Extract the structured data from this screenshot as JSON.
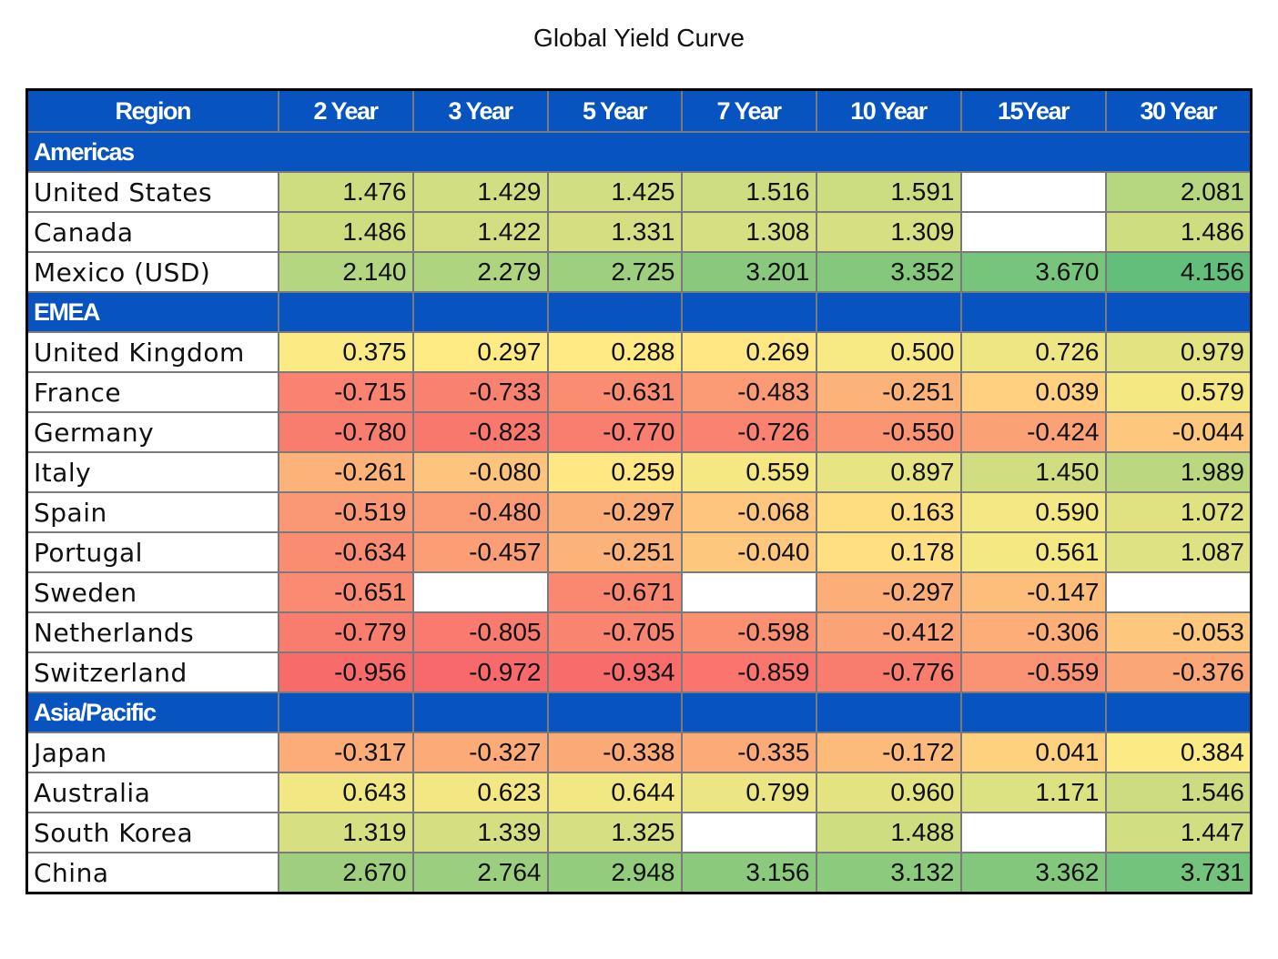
{
  "chart_data": {
    "type": "table",
    "title": "Global Yield Curve",
    "columns": [
      "Region",
      "2 Year",
      "3 Year",
      "5 Year",
      "7 Year",
      "10 Year",
      "15Year",
      "30 Year"
    ],
    "color_scale": {
      "min": -0.972,
      "max": 4.156,
      "low_color": "#f8696b",
      "mid_color": "#ffeb84",
      "high_color": "#63be7b",
      "mid_value": 0.3
    },
    "sections": [
      {
        "name": "Americas",
        "rows": [
          {
            "name": "United States",
            "values": [
              1.476,
              1.429,
              1.425,
              1.516,
              1.591,
              null,
              2.081
            ]
          },
          {
            "name": "Canada",
            "values": [
              1.486,
              1.422,
              1.331,
              1.308,
              1.309,
              null,
              1.486
            ]
          },
          {
            "name": "Mexico (USD)",
            "values": [
              2.14,
              2.279,
              2.725,
              3.201,
              3.352,
              3.67,
              4.156
            ]
          }
        ]
      },
      {
        "name": "EMEA",
        "rows": [
          {
            "name": "United Kingdom",
            "values": [
              0.375,
              0.297,
              0.288,
              0.269,
              0.5,
              0.726,
              0.979
            ]
          },
          {
            "name": "France",
            "values": [
              -0.715,
              -0.733,
              -0.631,
              -0.483,
              -0.251,
              0.039,
              0.579
            ]
          },
          {
            "name": "Germany",
            "values": [
              -0.78,
              -0.823,
              -0.77,
              -0.726,
              -0.55,
              -0.424,
              -0.044
            ]
          },
          {
            "name": "Italy",
            "values": [
              -0.261,
              -0.08,
              0.259,
              0.559,
              0.897,
              1.45,
              1.989
            ]
          },
          {
            "name": "Spain",
            "values": [
              -0.519,
              -0.48,
              -0.297,
              -0.068,
              0.163,
              0.59,
              1.072
            ]
          },
          {
            "name": "Portugal",
            "values": [
              -0.634,
              -0.457,
              -0.251,
              -0.04,
              0.178,
              0.561,
              1.087
            ]
          },
          {
            "name": "Sweden",
            "values": [
              -0.651,
              null,
              -0.671,
              null,
              -0.297,
              -0.147,
              null
            ]
          },
          {
            "name": "Netherlands",
            "values": [
              -0.779,
              -0.805,
              -0.705,
              -0.598,
              -0.412,
              -0.306,
              -0.053
            ]
          },
          {
            "name": "Switzerland",
            "values": [
              -0.956,
              -0.972,
              -0.934,
              -0.859,
              -0.776,
              -0.559,
              -0.376
            ]
          }
        ]
      },
      {
        "name": "Asia/Pacific",
        "rows": [
          {
            "name": "Japan",
            "values": [
              -0.317,
              -0.327,
              -0.338,
              -0.335,
              -0.172,
              0.041,
              0.384
            ]
          },
          {
            "name": "Australia",
            "values": [
              0.643,
              0.623,
              0.644,
              0.799,
              0.96,
              1.171,
              1.546
            ]
          },
          {
            "name": "South Korea",
            "values": [
              1.319,
              1.339,
              1.325,
              null,
              1.488,
              null,
              1.447
            ]
          },
          {
            "name": "China",
            "values": [
              2.67,
              2.764,
              2.948,
              3.156,
              3.132,
              3.362,
              3.731
            ]
          }
        ]
      }
    ]
  }
}
